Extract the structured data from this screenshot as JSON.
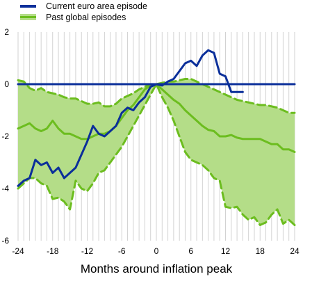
{
  "chart_data": {
    "type": "line",
    "title": "",
    "xlabel": "Months around inflation peak",
    "ylabel": "",
    "xlim": [
      -24,
      24
    ],
    "ylim": [
      -6,
      2
    ],
    "x_ticks": [
      -24,
      -18,
      -12,
      -6,
      0,
      6,
      12,
      18,
      24
    ],
    "y_ticks": [
      2,
      0,
      -2,
      -4,
      -6
    ],
    "grid": "vertical lines every month",
    "legend": "top-left",
    "series": [
      {
        "name": "Current euro area episode",
        "color": "#0b2f9a",
        "style": "solid",
        "x": [
          -24,
          -23,
          -22,
          -21,
          -20,
          -19,
          -18,
          -17,
          -16,
          -15,
          -14,
          -13,
          -12,
          -11,
          -10,
          -9,
          -8,
          -7,
          -6,
          -5,
          -4,
          -3,
          -2,
          -1,
          0,
          1,
          2,
          3,
          4,
          5,
          6,
          7,
          8,
          9,
          10,
          11,
          12,
          13,
          14,
          15
        ],
        "values": [
          -3.9,
          -3.7,
          -3.6,
          -2.9,
          -3.1,
          -3.0,
          -3.4,
          -3.2,
          -3.6,
          -3.4,
          -3.2,
          -2.7,
          -2.2,
          -1.6,
          -1.9,
          -2.0,
          -1.8,
          -1.6,
          -1.1,
          -0.9,
          -1.0,
          -0.7,
          -0.5,
          -0.1,
          0.0,
          -0.05,
          0.1,
          0.2,
          0.5,
          0.8,
          0.9,
          0.7,
          1.1,
          1.3,
          1.2,
          0.4,
          0.3,
          -0.3,
          -0.3,
          -0.3
        ]
      },
      {
        "name": "Past global episodes",
        "color": "#6cbd1f",
        "band_color": "#b4dd88",
        "style": "solid median with dashed bounds",
        "x": [
          -24,
          -23,
          -22,
          -21,
          -20,
          -19,
          -18,
          -17,
          -16,
          -15,
          -14,
          -13,
          -12,
          -11,
          -10,
          -9,
          -8,
          -7,
          -6,
          -5,
          -4,
          -3,
          -2,
          -1,
          0,
          1,
          2,
          3,
          4,
          5,
          6,
          7,
          8,
          9,
          10,
          11,
          12,
          13,
          14,
          15,
          16,
          17,
          18,
          19,
          20,
          21,
          22,
          23,
          24
        ],
        "values": [
          -1.7,
          -1.6,
          -1.5,
          -1.7,
          -1.8,
          -1.7,
          -1.4,
          -1.7,
          -1.9,
          -1.9,
          -2.0,
          -2.1,
          -2.1,
          -2.0,
          -1.9,
          -1.9,
          -1.8,
          -1.6,
          -1.3,
          -1.0,
          -0.8,
          -0.5,
          -0.2,
          -0.05,
          0.0,
          -0.2,
          -0.4,
          -0.6,
          -0.75,
          -1.0,
          -1.2,
          -1.4,
          -1.6,
          -1.75,
          -1.8,
          -2.0,
          -2.0,
          -1.95,
          -2.05,
          -2.1,
          -2.1,
          -2.1,
          -2.1,
          -2.2,
          -2.3,
          -2.3,
          -2.5,
          -2.5,
          -2.6
        ],
        "upper": [
          0.15,
          0.1,
          -0.15,
          -0.25,
          -0.15,
          -0.3,
          -0.35,
          -0.4,
          -0.5,
          -0.55,
          -0.55,
          -0.65,
          -0.75,
          -0.75,
          -0.7,
          -0.85,
          -0.85,
          -0.75,
          -0.55,
          -0.45,
          -0.35,
          -0.2,
          -0.1,
          0.0,
          0.0,
          0.05,
          0.1,
          0.1,
          0.15,
          0.2,
          0.2,
          0.1,
          0.0,
          -0.1,
          -0.2,
          -0.3,
          -0.4,
          -0.5,
          -0.6,
          -0.65,
          -0.7,
          -0.75,
          -0.8,
          -0.8,
          -0.85,
          -0.9,
          -1.0,
          -1.1,
          -1.1
        ],
        "lower": [
          -4.0,
          -3.8,
          -3.6,
          -3.6,
          -3.8,
          -3.9,
          -4.4,
          -4.35,
          -4.5,
          -4.8,
          -3.7,
          -4.0,
          -4.1,
          -3.8,
          -3.4,
          -3.3,
          -3.0,
          -2.7,
          -2.4,
          -2.0,
          -1.6,
          -1.2,
          -0.8,
          -0.4,
          0.0,
          -0.5,
          -0.9,
          -1.4,
          -2.0,
          -2.6,
          -2.9,
          -3.0,
          -3.1,
          -3.3,
          -3.6,
          -3.7,
          -4.7,
          -4.75,
          -4.7,
          -5.0,
          -5.2,
          -5.1,
          -5.4,
          -5.3,
          -5.0,
          -4.8,
          -5.35,
          -5.2,
          -5.4
        ]
      },
      {
        "name": "",
        "role": "zero reference line",
        "color": "#0b2f9a",
        "x": [
          -24,
          24
        ],
        "values": [
          0,
          0
        ]
      }
    ]
  }
}
